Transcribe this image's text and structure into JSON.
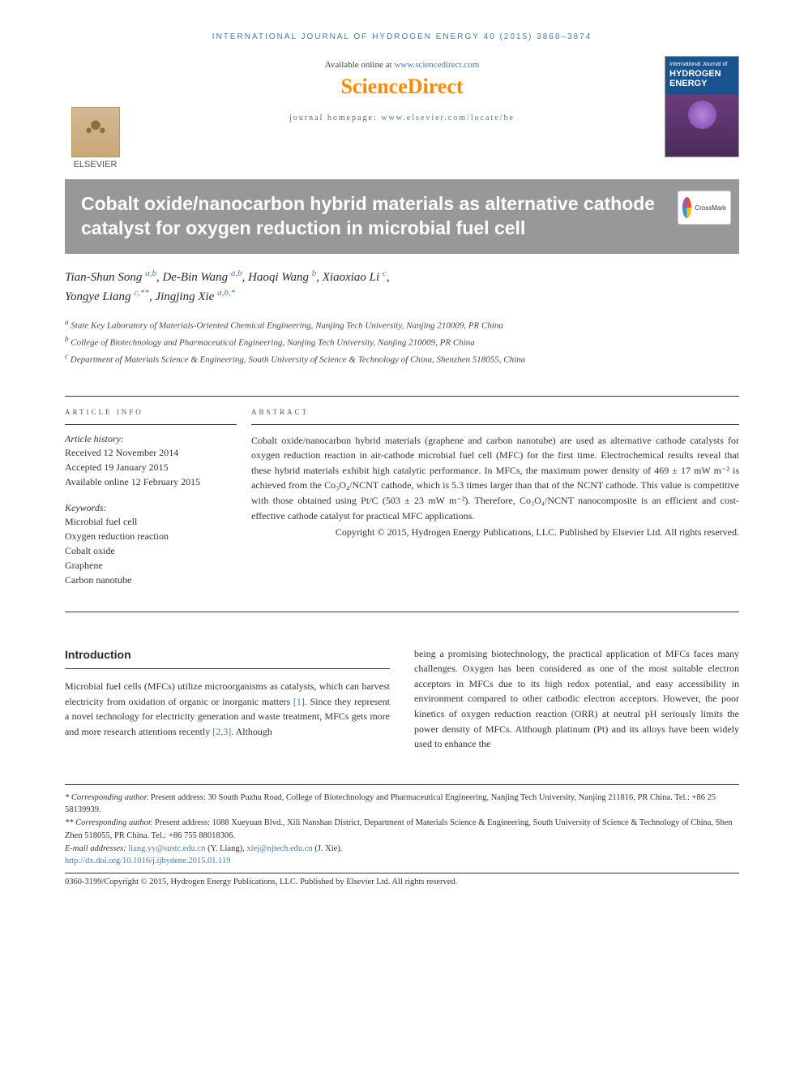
{
  "journal_header": "INTERNATIONAL JOURNAL OF HYDROGEN ENERGY 40 (2015) 3868–3874",
  "header": {
    "available_prefix": "Available online at ",
    "available_link": "www.sciencedirect.com",
    "sciencedirect": "ScienceDirect",
    "homepage_prefix": "journal homepage: ",
    "homepage_link": "www.elsevier.com/locate/he",
    "elsevier": "ELSEVIER",
    "cover_journal_small": "International Journal of",
    "cover_journal_main": "HYDROGEN ENERGY",
    "crossmark": "CrossMark"
  },
  "title": "Cobalt oxide/nanocarbon hybrid materials as alternative cathode catalyst for oxygen reduction in microbial fuel cell",
  "authors": [
    {
      "name": "Tian-Shun Song",
      "aff": "a,b"
    },
    {
      "name": "De-Bin Wang",
      "aff": "a,b"
    },
    {
      "name": "Haoqi Wang",
      "aff": "b"
    },
    {
      "name": "Xiaoxiao Li",
      "aff": "c"
    },
    {
      "name": "Yongye Liang",
      "aff": "c,**"
    },
    {
      "name": "Jingjing Xie",
      "aff": "a,b,*"
    }
  ],
  "affiliations": [
    {
      "sup": "a",
      "text": "State Key Laboratory of Materials-Oriented Chemical Engineering, Nanjing Tech University, Nanjing 210009, PR China"
    },
    {
      "sup": "b",
      "text": "College of Biotechnology and Pharmaceutical Engineering, Nanjing Tech University, Nanjing 210009, PR China"
    },
    {
      "sup": "c",
      "text": "Department of Materials Science & Engineering, South University of Science & Technology of China, Shenzhen 518055, China"
    }
  ],
  "article_info": {
    "heading": "ARTICLE INFO",
    "history_label": "Article history:",
    "history": [
      "Received 12 November 2014",
      "Accepted 19 January 2015",
      "Available online 12 February 2015"
    ],
    "keywords_label": "Keywords:",
    "keywords": [
      "Microbial fuel cell",
      "Oxygen reduction reaction",
      "Cobalt oxide",
      "Graphene",
      "Carbon nanotube"
    ]
  },
  "abstract": {
    "heading": "ABSTRACT",
    "text": "Cobalt oxide/nanocarbon hybrid materials (graphene and carbon nanotube) are used as alternative cathode catalysts for oxygen reduction reaction in air-cathode microbial fuel cell (MFC) for the first time. Electrochemical results reveal that these hybrid materials exhibit high catalytic performance. In MFCs, the maximum power density of 469 ± 17 mW m⁻² is achieved from the Co₃O₄/NCNT cathode, which is 5.3 times larger than that of the NCNT cathode. This value is competitive with those obtained using Pt/C (503 ± 23 mW m⁻²). Therefore, Co₃O₄/NCNT nanocomposite is an efficient and cost-effective cathode catalyst for practical MFC applications.",
    "copyright": "Copyright © 2015, Hydrogen Energy Publications, LLC. Published by Elsevier Ltd. All rights reserved."
  },
  "body": {
    "section_heading": "Introduction",
    "col1": "Microbial fuel cells (MFCs) utilize microorganisms as catalysts, which can harvest electricity from oxidation of organic or inorganic matters [1]. Since they represent a novel technology for electricity generation and waste treatment, MFCs gets more and more research attentions recently [2,3]. Although",
    "col2": "being a promising biotechnology, the practical application of MFCs faces many challenges. Oxygen has been considered as one of the most suitable electron acceptors in MFCs due to its high redox potential, and easy accessibility in environment compared to other cathodic electron acceptors. However, the poor kinetics of oxygen reduction reaction (ORR) at neutral pH seriously limits the power density of MFCs. Although platinum (Pt) and its alloys have been widely used to enhance the"
  },
  "footer": {
    "corr1_label": "* Corresponding author.",
    "corr1_text": " Present address: 30 South Puzhu Road, College of Biotechnology and Pharmaceutical Engineering, Nanjing Tech University, Nanjing 211816, PR China. Tel.: +86 25 58139939.",
    "corr2_label": "** Corresponding author.",
    "corr2_text": " Present address: 1088 Xueyuan Blvd., Xili Nanshan District, Department of Materials Science & Engineering, South University of Science & Technology of China, Shen Zhen 518055, PR China. Tel.: +86 755 88018306.",
    "email_label": "E-mail addresses: ",
    "email1": "liang.yy@sustc.edu.cn",
    "email1_name": " (Y. Liang), ",
    "email2": "xiej@njtech.edu.cn",
    "email2_name": " (J. Xie).",
    "doi": "http://dx.doi.org/10.1016/j.ijhydene.2015.01.119",
    "issn": "0360-3199/Copyright © 2015, Hydrogen Energy Publications, LLC. Published by Elsevier Ltd. All rights reserved."
  },
  "refs": {
    "r1": "[1]",
    "r23": "[2,3]"
  },
  "colors": {
    "link": "#4a7ba6",
    "titlebar": "#98989a",
    "orange": "#ff8800"
  }
}
